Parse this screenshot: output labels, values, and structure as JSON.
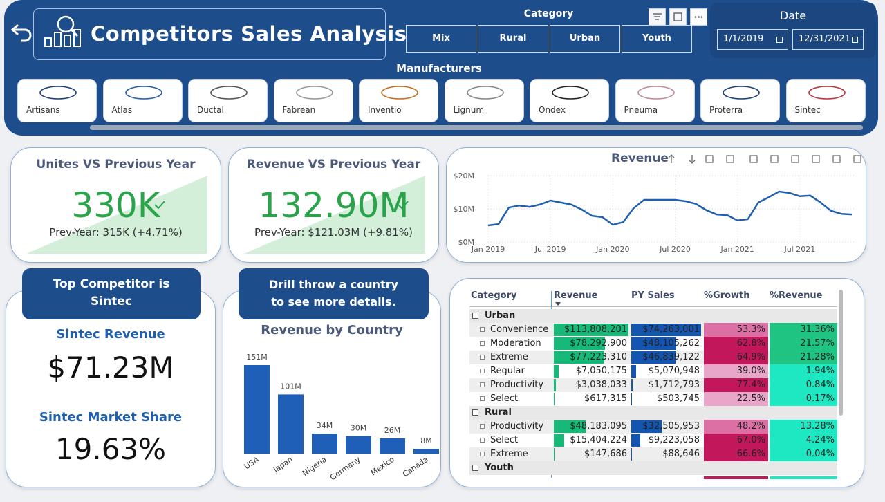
{
  "header": {
    "title": "Competitors Sales Analysis",
    "category_label": "Category",
    "categories": [
      "Mix",
      "Rural",
      "Urban",
      "Youth"
    ],
    "date_label": "Date",
    "date_start": "1/1/2019",
    "date_end": "12/31/2021",
    "manufacturers_label": "Manufacturers",
    "manufacturers": [
      "Artisans",
      "Atlas",
      "Ductal",
      "Fabrean",
      "Inventio",
      "Lignum",
      "Ondex",
      "Pneuma",
      "Proterra",
      "Sintec"
    ]
  },
  "kpis": [
    {
      "title": "Unites VS Previous Year",
      "value": "330K",
      "prev": "Prev-Year: 315K (+4.71%)"
    },
    {
      "title": "Revenue VS Previous Year",
      "value": "132.90M",
      "prev": "Prev-Year: $121.03M (+9.81%)"
    }
  ],
  "top_competitor": {
    "banner": "Top Competitor is Sintec",
    "revenue_label": "Sintec Revenue",
    "revenue": "$71.23M",
    "share_label": "Sintec Market Share",
    "share": "19.63%"
  },
  "drill_note": "Drill throw a country to see more details.",
  "revenue_chart": {
    "type": "line",
    "title": "Revenue",
    "categories": [
      "Jan 2019",
      null,
      null,
      null,
      null,
      null,
      "Jul 2019",
      null,
      null,
      null,
      null,
      null,
      "Jan 2020",
      null,
      null,
      null,
      null,
      null,
      "Jul 2020",
      null,
      null,
      null,
      null,
      null,
      "Jan 2021",
      null,
      null,
      null,
      null,
      null,
      "Jul 2021",
      null,
      null,
      null,
      null,
      null
    ],
    "values": [
      5.0,
      5.4,
      10.4,
      11.0,
      10.6,
      11.3,
      12.5,
      11.9,
      11.3,
      9.8,
      7.9,
      7.5,
      5.2,
      6.0,
      10.2,
      12.7,
      12.7,
      12.7,
      12.7,
      12.3,
      11.5,
      9.6,
      8.3,
      8.1,
      6.5,
      6.9,
      11.9,
      13.5,
      15.2,
      14.8,
      13.8,
      14.0,
      11.9,
      9.4,
      8.5,
      8.3
    ],
    "color": "#1f5fb0",
    "ylim": [
      0,
      20
    ],
    "yticks": [
      {
        "value": 0,
        "label": "$0M"
      },
      {
        "value": 10,
        "label": "$10M"
      },
      {
        "value": 20,
        "label": "$20M"
      }
    ],
    "grid": true
  },
  "country_chart": {
    "type": "bar",
    "title": "Revenue by Country",
    "categories": [
      "USA",
      "Japan",
      "Nigeria",
      "Germany",
      "Mexico",
      "Canada"
    ],
    "values": [
      151,
      101,
      34,
      30,
      26,
      8
    ],
    "value_labels": [
      "151M",
      "101M",
      "34M",
      "30M",
      "26M",
      "8M"
    ],
    "color": "#1f5fb8"
  },
  "table": {
    "columns": [
      "Category",
      "Revenue",
      "PY Sales",
      "%Growth",
      "%Revenue"
    ],
    "groups": [
      {
        "name": "Urban",
        "rows": [
          [
            "Convenience",
            "$113,808,201",
            "$74,263,001",
            "53.3%",
            "31.36%"
          ],
          [
            "Moderation",
            "$78,292,900",
            "$48,105,262",
            "62.8%",
            "21.57%"
          ],
          [
            "Extreme",
            "$77,223,310",
            "$46,839,122",
            "64.9%",
            "21.28%"
          ],
          [
            "Regular",
            "$7,050,175",
            "$5,070,948",
            "39.0%",
            "1.94%"
          ],
          [
            "Productivity",
            "$3,038,033",
            "$1,712,793",
            "77.4%",
            "0.84%"
          ],
          [
            "Select",
            "$617,315",
            "$503,745",
            "22.5%",
            "0.17%"
          ]
        ]
      },
      {
        "name": "Rural",
        "rows": [
          [
            "Productivity",
            "$48,183,095",
            "$32,505,953",
            "48.2%",
            "13.28%"
          ],
          [
            "Select",
            "$15,404,224",
            "$9,223,058",
            "67.0%",
            "4.24%"
          ],
          [
            "Extreme",
            "$147,686",
            "$88,646",
            "66.6%",
            "0.04%"
          ]
        ]
      },
      {
        "name": "Youth",
        "rows": []
      }
    ]
  }
}
